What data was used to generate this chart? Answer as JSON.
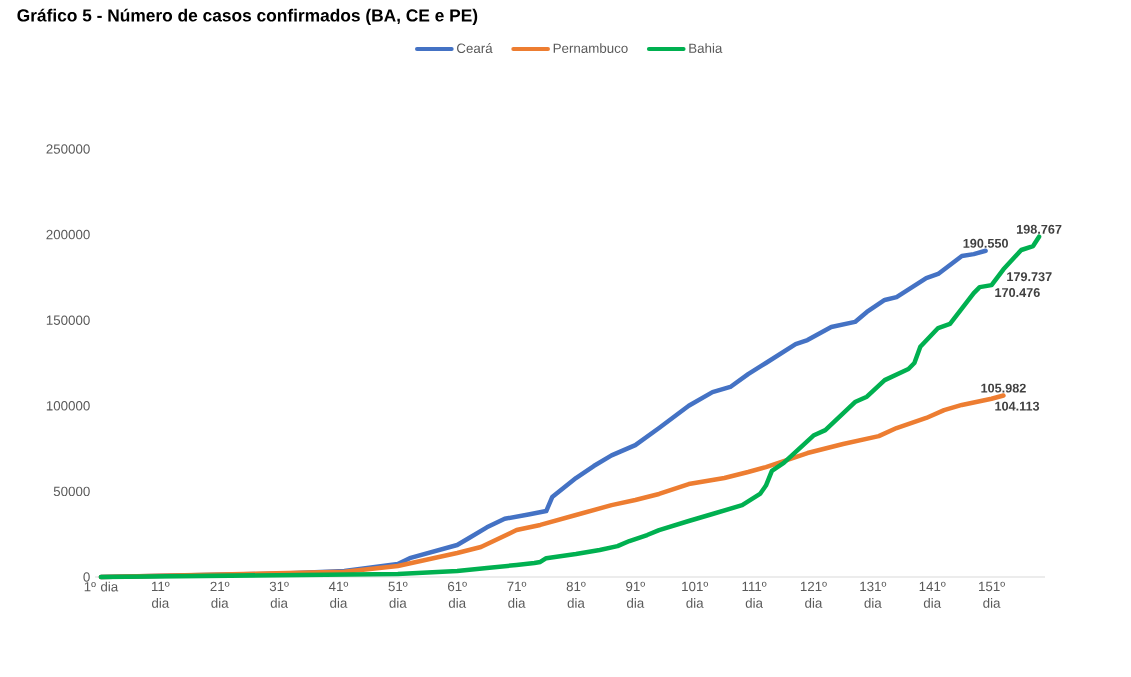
{
  "chart_data": {
    "type": "line",
    "title": "Gráfico 5 - Número de casos confirmados (BA, CE e PE)",
    "xlim": [
      0,
      160
    ],
    "ylim": [
      0,
      250000
    ],
    "xticks": [
      {
        "value": 1,
        "label": "1º dia"
      },
      {
        "value": 11,
        "label": "11º dia"
      },
      {
        "value": 21,
        "label": "21º dia"
      },
      {
        "value": 31,
        "label": "31º dia"
      },
      {
        "value": 41,
        "label": "41º dia"
      },
      {
        "value": 51,
        "label": "51º dia"
      },
      {
        "value": 61,
        "label": "61º dia"
      },
      {
        "value": 71,
        "label": "71º dia"
      },
      {
        "value": 81,
        "label": "81º dia"
      },
      {
        "value": 91,
        "label": "91º dia"
      },
      {
        "value": 101,
        "label": "101º dia"
      },
      {
        "value": 111,
        "label": "111º dia"
      },
      {
        "value": 121,
        "label": "121º dia"
      },
      {
        "value": 131,
        "label": "131º dia"
      },
      {
        "value": 141,
        "label": "141º dia"
      },
      {
        "value": 151,
        "label": "151º dia"
      }
    ],
    "yticks": [
      0,
      50000,
      100000,
      150000,
      200000,
      250000
    ],
    "grid": false,
    "legend": "top",
    "marker": "none",
    "line_style": "solid",
    "series": [
      {
        "name": "Ceará",
        "color": "#4472c4",
        "x": [
          1,
          32,
          42,
          51,
          53,
          61,
          63,
          66,
          69,
          73,
          76,
          77,
          81,
          84,
          87,
          91,
          95,
          100,
          104,
          107,
          110,
          113,
          118,
          120,
          124,
          128,
          130,
          133,
          135,
          140,
          142,
          146,
          148,
          150
        ],
        "values": [
          0,
          2000,
          3500,
          7600,
          11000,
          18700,
          22800,
          29000,
          34000,
          36500,
          38500,
          46700,
          57800,
          64800,
          71000,
          77000,
          87000,
          100000,
          108000,
          111000,
          118500,
          125000,
          136000,
          138400,
          146000,
          149000,
          154800,
          161800,
          163500,
          174600,
          177000,
          187500,
          188600,
          190550
        ],
        "value_labels": [
          null,
          null,
          null,
          null,
          null,
          null,
          null,
          null,
          null,
          null,
          null,
          null,
          null,
          null,
          null,
          null,
          null,
          null,
          null,
          null,
          null,
          null,
          null,
          null,
          null,
          null,
          null,
          null,
          null,
          null,
          null,
          null,
          null,
          "190.550"
        ]
      },
      {
        "name": "Pernambuco",
        "color": "#ed7d31",
        "x": [
          1,
          42,
          51,
          61,
          65,
          71,
          75,
          81,
          87,
          91,
          95,
          100,
          106,
          110,
          113,
          120,
          126,
          132,
          135,
          140,
          143,
          146,
          151,
          153
        ],
        "values": [
          0,
          3000,
          6400,
          14000,
          17500,
          27400,
          30400,
          36200,
          42000,
          45000,
          48500,
          54300,
          57800,
          61300,
          64200,
          72400,
          77700,
          82300,
          87000,
          92900,
          97500,
          100500,
          104113,
          105982
        ],
        "value_labels": [
          null,
          null,
          null,
          null,
          null,
          null,
          null,
          null,
          null,
          null,
          null,
          null,
          null,
          null,
          null,
          null,
          null,
          null,
          null,
          null,
          null,
          null,
          "104.113",
          "105.982"
        ]
      },
      {
        "name": "Bahia",
        "color": "#00b050",
        "x": [
          1,
          51,
          61,
          66,
          71,
          74,
          75,
          76,
          81,
          85,
          88,
          90,
          93,
          95,
          100,
          104,
          109,
          112,
          113,
          114,
          116,
          121,
          123,
          128,
          130,
          133,
          137,
          138,
          139,
          142,
          144,
          148,
          149,
          151,
          153,
          156,
          158,
          159
        ],
        "values": [
          0,
          1800,
          3500,
          5300,
          7000,
          8200,
          8800,
          11000,
          13400,
          15800,
          18000,
          21000,
          24500,
          27400,
          32700,
          36800,
          42000,
          48500,
          53400,
          62000,
          66600,
          82600,
          85800,
          102200,
          105300,
          115000,
          121500,
          125000,
          134500,
          145400,
          147800,
          165800,
          169300,
          170476,
          179737,
          191000,
          193300,
          198767
        ],
        "value_labels": [
          null,
          null,
          null,
          null,
          null,
          null,
          null,
          null,
          null,
          null,
          null,
          null,
          null,
          null,
          null,
          null,
          null,
          null,
          null,
          null,
          null,
          null,
          null,
          null,
          null,
          null,
          null,
          null,
          null,
          null,
          null,
          null,
          null,
          "170.476",
          "179.737",
          null,
          null,
          "198.767"
        ]
      }
    ]
  }
}
